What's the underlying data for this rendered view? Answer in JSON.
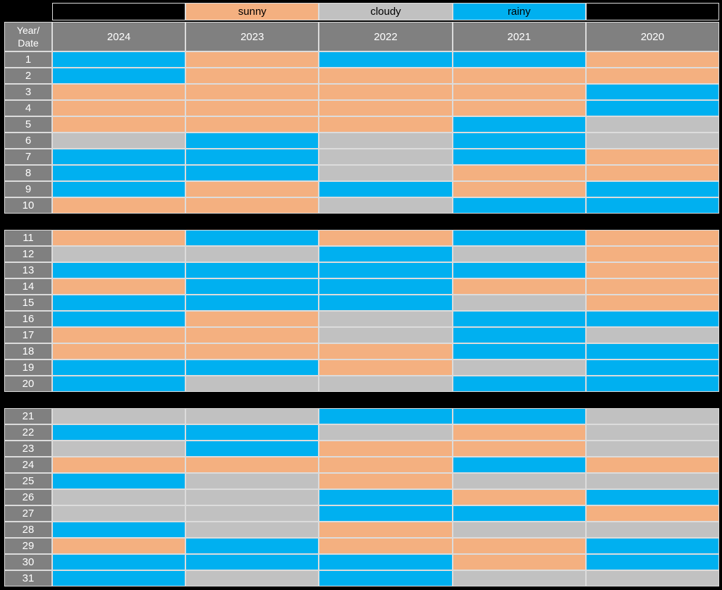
{
  "page": {
    "background": "#000000"
  },
  "colors": {
    "sunny": "#F4B080",
    "cloudy": "#C1C1C1",
    "rainy": "#00B0F0",
    "header_bg": "#808080",
    "header_text": "#FFFFFF",
    "legend_text": "#000000",
    "gridline": "#DCDCDC",
    "section_gap": "#000000"
  },
  "legend": {
    "items": [
      {
        "label": "sunny",
        "key": "sunny"
      },
      {
        "label": "cloudy",
        "key": "cloudy"
      },
      {
        "label": "rainy",
        "key": "rainy"
      }
    ]
  },
  "header": {
    "corner_line1": "Year/",
    "corner_line2": "Date",
    "years": [
      "2024",
      "2023",
      "2022",
      "2021",
      "2020"
    ]
  },
  "chart_data": {
    "type": "heatmap",
    "corner_label": "Year/Date",
    "legend_entries": [
      "sunny",
      "cloudy",
      "rainy"
    ],
    "legend_position": "top",
    "columns": [
      "2024",
      "2023",
      "2022",
      "2021",
      "2020"
    ],
    "days": [
      1,
      2,
      3,
      4,
      5,
      6,
      7,
      8,
      9,
      10,
      11,
      12,
      13,
      14,
      15,
      16,
      17,
      18,
      19,
      20,
      21,
      22,
      23,
      24,
      25,
      26,
      27,
      28,
      29,
      30,
      31
    ],
    "sections": [
      [
        1,
        10
      ],
      [
        11,
        20
      ],
      [
        21,
        31
      ]
    ],
    "color_map": {
      "sunny": "#F4B080",
      "cloudy": "#C1C1C1",
      "rainy": "#00B0F0"
    },
    "values": [
      [
        "rainy",
        "sunny",
        "rainy",
        "rainy",
        "sunny"
      ],
      [
        "rainy",
        "sunny",
        "sunny",
        "sunny",
        "sunny"
      ],
      [
        "sunny",
        "sunny",
        "sunny",
        "sunny",
        "rainy"
      ],
      [
        "sunny",
        "sunny",
        "sunny",
        "sunny",
        "rainy"
      ],
      [
        "sunny",
        "sunny",
        "sunny",
        "rainy",
        "cloudy"
      ],
      [
        "cloudy",
        "rainy",
        "cloudy",
        "rainy",
        "cloudy"
      ],
      [
        "rainy",
        "rainy",
        "cloudy",
        "rainy",
        "sunny"
      ],
      [
        "rainy",
        "rainy",
        "cloudy",
        "sunny",
        "sunny"
      ],
      [
        "rainy",
        "sunny",
        "rainy",
        "sunny",
        "rainy"
      ],
      [
        "sunny",
        "sunny",
        "cloudy",
        "rainy",
        "rainy"
      ],
      [
        "sunny",
        "rainy",
        "sunny",
        "rainy",
        "sunny"
      ],
      [
        "cloudy",
        "cloudy",
        "rainy",
        "cloudy",
        "sunny"
      ],
      [
        "rainy",
        "rainy",
        "rainy",
        "rainy",
        "sunny"
      ],
      [
        "sunny",
        "rainy",
        "rainy",
        "sunny",
        "sunny"
      ],
      [
        "rainy",
        "rainy",
        "rainy",
        "cloudy",
        "sunny"
      ],
      [
        "rainy",
        "sunny",
        "cloudy",
        "rainy",
        "rainy"
      ],
      [
        "sunny",
        "sunny",
        "cloudy",
        "rainy",
        "cloudy"
      ],
      [
        "sunny",
        "sunny",
        "sunny",
        "rainy",
        "rainy"
      ],
      [
        "rainy",
        "rainy",
        "sunny",
        "cloudy",
        "rainy"
      ],
      [
        "rainy",
        "cloudy",
        "cloudy",
        "rainy",
        "rainy"
      ],
      [
        "cloudy",
        "cloudy",
        "rainy",
        "rainy",
        "cloudy"
      ],
      [
        "rainy",
        "rainy",
        "cloudy",
        "sunny",
        "cloudy"
      ],
      [
        "cloudy",
        "rainy",
        "sunny",
        "sunny",
        "cloudy"
      ],
      [
        "sunny",
        "sunny",
        "sunny",
        "rainy",
        "sunny"
      ],
      [
        "rainy",
        "cloudy",
        "sunny",
        "cloudy",
        "cloudy"
      ],
      [
        "cloudy",
        "cloudy",
        "rainy",
        "sunny",
        "rainy"
      ],
      [
        "cloudy",
        "cloudy",
        "rainy",
        "rainy",
        "sunny"
      ],
      [
        "rainy",
        "cloudy",
        "sunny",
        "cloudy",
        "cloudy"
      ],
      [
        "sunny",
        "rainy",
        "sunny",
        "sunny",
        "rainy"
      ],
      [
        "rainy",
        "rainy",
        "rainy",
        "sunny",
        "rainy"
      ],
      [
        "rainy",
        "cloudy",
        "rainy",
        "cloudy",
        "cloudy"
      ]
    ]
  }
}
